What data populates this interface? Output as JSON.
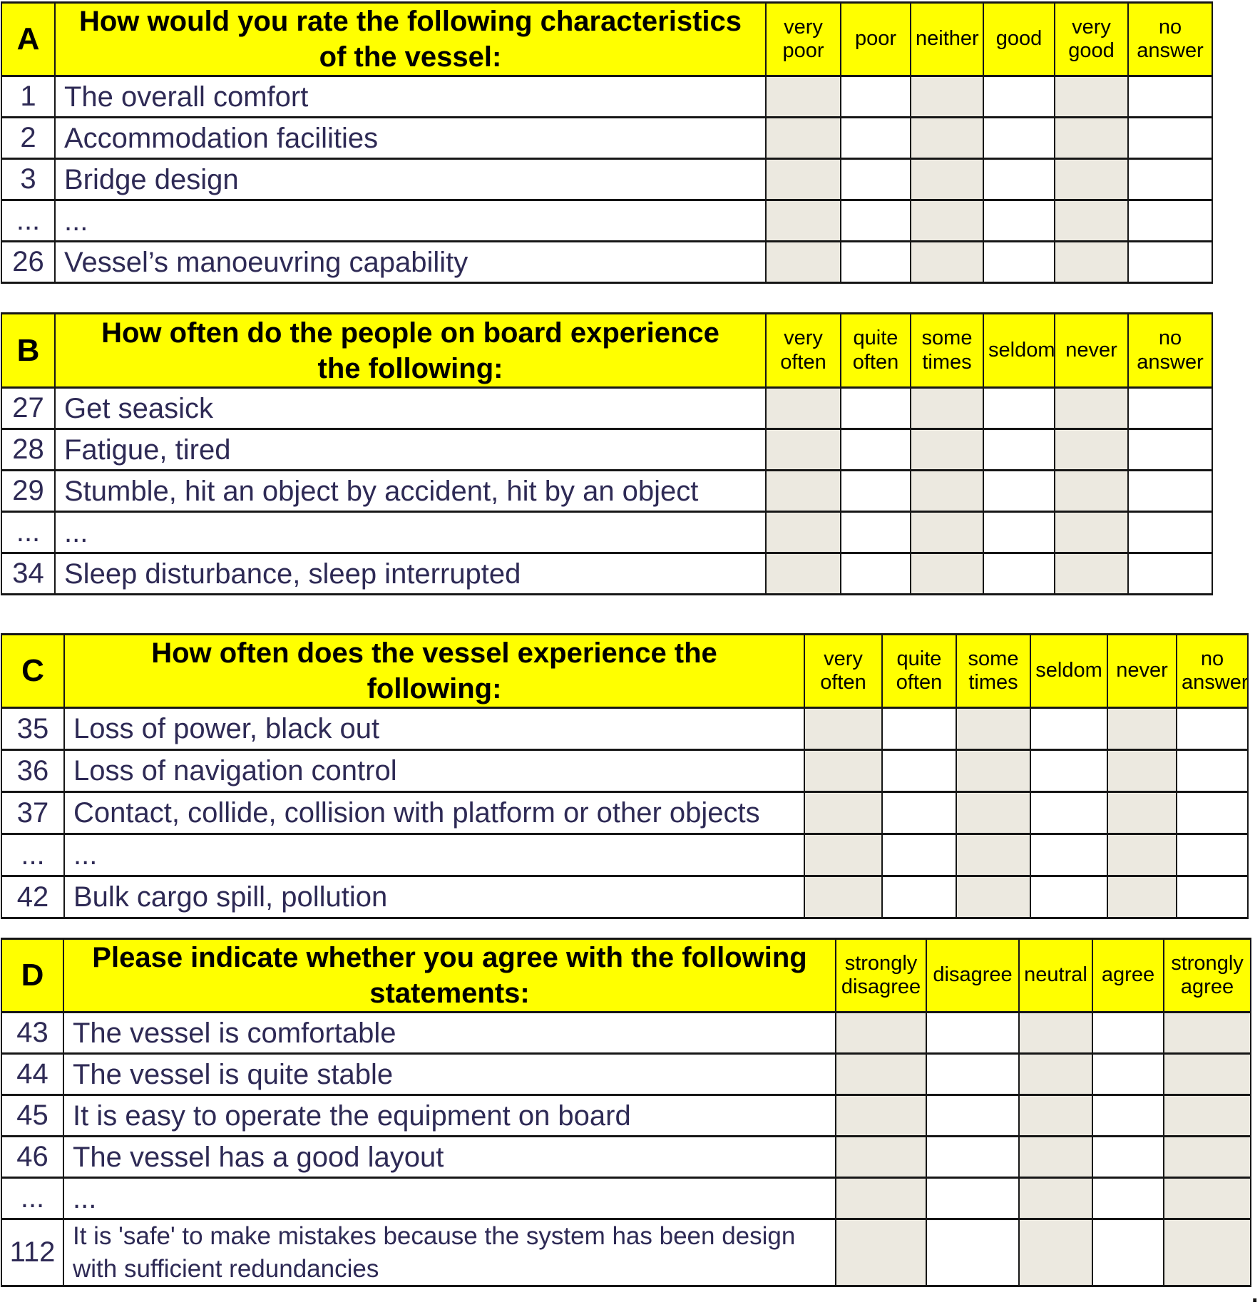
{
  "page": {
    "trailing_period": ".",
    "colors": {
      "section_header_bg": "#ffff00",
      "shaded_answer_cell": "#ece9e0",
      "answer_cell": "#ffffff",
      "grid_border": "#161616",
      "body_text": "#2e2a55",
      "header_text": "#000000"
    }
  },
  "sections": [
    {
      "letter": "A",
      "title": "How would you rate the following characteristics of the vessel:",
      "columns": [
        "very poor",
        "poor",
        "neither",
        "good",
        "very good",
        "no answer"
      ],
      "rows": [
        {
          "num": "1",
          "text": "The overall comfort"
        },
        {
          "num": "2",
          "text": "Accommodation facilities"
        },
        {
          "num": "3",
          "text": "Bridge design"
        },
        {
          "num": "...",
          "text": "..."
        },
        {
          "num": "26",
          "text": "Vessel’s manoeuvring capability"
        }
      ]
    },
    {
      "letter": "B",
      "title": "How often do the people on board experience the following:",
      "columns": [
        "very often",
        "quite often",
        "some times",
        "seldom",
        "never",
        "no answer"
      ],
      "rows": [
        {
          "num": "27",
          "text": "Get seasick"
        },
        {
          "num": "28",
          "text": "Fatigue, tired"
        },
        {
          "num": "29",
          "text": "Stumble, hit an object by accident, hit by an object"
        },
        {
          "num": "...",
          "text": "..."
        },
        {
          "num": "34",
          "text": "Sleep disturbance, sleep interrupted"
        }
      ]
    },
    {
      "letter": "C",
      "title": "How often does the vessel experience the following:",
      "columns": [
        "very often",
        "quite often",
        "some times",
        "seldom",
        "never",
        "no answer"
      ],
      "rows": [
        {
          "num": "35",
          "text": "Loss of power, black out"
        },
        {
          "num": "36",
          "text": "Loss of navigation control"
        },
        {
          "num": "37",
          "text": "Contact, collide, collision with platform or other objects"
        },
        {
          "num": "...",
          "text": "..."
        },
        {
          "num": "42",
          "text": "Bulk cargo spill, pollution"
        }
      ]
    },
    {
      "letter": "D",
      "title": "Please indicate whether you agree with the following statements:",
      "columns": [
        "strongly disagree",
        "disagree",
        "neutral",
        "agree",
        "strongly agree"
      ],
      "rows": [
        {
          "num": "43",
          "text": "The vessel is comfortable"
        },
        {
          "num": "44",
          "text": "The vessel is quite stable"
        },
        {
          "num": "45",
          "text": "It is easy to operate the equipment on board"
        },
        {
          "num": "46",
          "text": "The vessel has a good layout"
        },
        {
          "num": "...",
          "text": "..."
        },
        {
          "num": "112",
          "text": "It is 'safe' to make mistakes because the system has been design with sufficient redundancies"
        }
      ]
    }
  ]
}
